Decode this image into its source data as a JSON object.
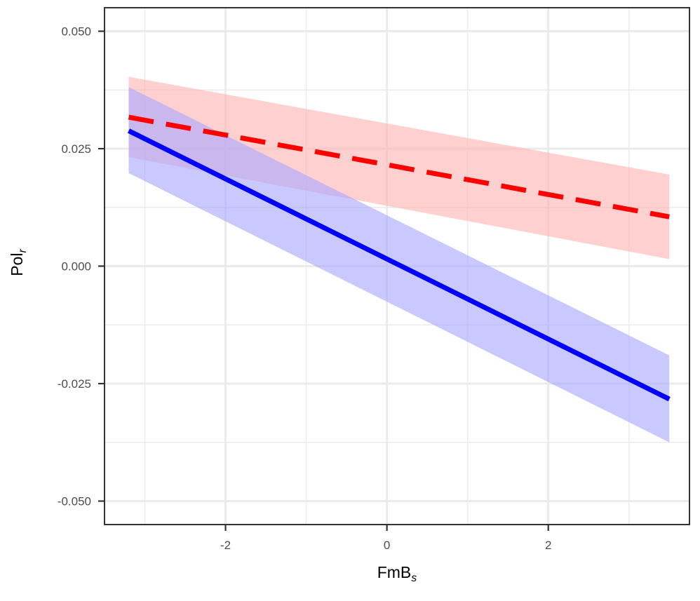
{
  "chart_data": {
    "type": "line",
    "title": "",
    "xlabel": "FmB",
    "xlabel_subscript": "s",
    "ylabel": "Pol",
    "ylabel_subscript": "r",
    "xlim": [
      -3.5,
      3.75
    ],
    "ylim": [
      -0.055,
      0.055
    ],
    "x_major_ticks": [
      -2,
      0,
      2
    ],
    "x_tick_labels": [
      "-2",
      "0",
      "2"
    ],
    "x_minor_ticks": [
      -3,
      -1,
      1,
      3
    ],
    "y_major_ticks": [
      -0.05,
      -0.025,
      0.0,
      0.025,
      0.05
    ],
    "y_tick_labels": [
      "-0.050",
      "-0.025",
      "0.000",
      "0.025",
      "0.050"
    ],
    "y_minor_ticks": [
      -0.0375,
      -0.0125,
      0.0125,
      0.0375
    ],
    "grid": true,
    "series": [
      {
        "name": "red dashed",
        "line_style": "dashed",
        "color": "#ff0000",
        "band_color": "#ffb3b3",
        "x": [
          -3.2,
          3.5
        ],
        "values": [
          0.0317,
          0.0105
        ],
        "lower": [
          0.0232,
          0.0015
        ],
        "upper": [
          0.0403,
          0.0195
        ]
      },
      {
        "name": "blue solid",
        "line_style": "solid",
        "color": "#0000ff",
        "band_color": "#a8a8ff",
        "x": [
          -3.2,
          3.5
        ],
        "values": [
          0.0288,
          -0.0283
        ],
        "lower": [
          0.0198,
          -0.0375
        ],
        "upper": [
          0.0381,
          -0.019
        ]
      }
    ]
  }
}
